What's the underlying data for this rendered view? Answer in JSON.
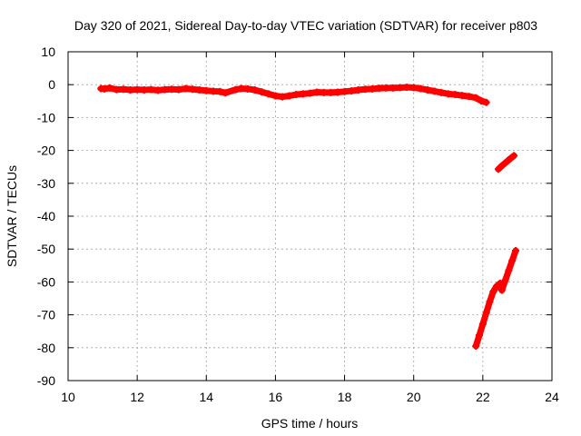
{
  "chart_data": {
    "type": "scatter",
    "title": "Day 320 of 2021, Sidereal Day-to-day VTEC variation (SDTVAR) for receiver p803",
    "xlabel": "GPS time / hours",
    "ylabel": "SDTVAR / TECUs",
    "xlim": [
      10,
      24
    ],
    "ylim": [
      -90,
      10
    ],
    "xticks": [
      10,
      12,
      14,
      16,
      18,
      20,
      22,
      24
    ],
    "yticks": [
      10,
      0,
      -10,
      -20,
      -30,
      -40,
      -50,
      -60,
      -70,
      -80,
      -90
    ],
    "grid": true,
    "marker_color": "#ff0000",
    "series": [
      {
        "points": [
          [
            10.95,
            -1.2
          ],
          [
            11.05,
            -1.3
          ],
          [
            11.2,
            -1.0
          ],
          [
            11.4,
            -1.5
          ],
          [
            11.6,
            -1.4
          ],
          [
            11.8,
            -1.6
          ],
          [
            12.0,
            -1.5
          ],
          [
            12.2,
            -1.6
          ],
          [
            12.4,
            -1.5
          ],
          [
            12.6,
            -1.7
          ],
          [
            12.8,
            -1.5
          ],
          [
            13.0,
            -1.4
          ],
          [
            13.2,
            -1.5
          ],
          [
            13.4,
            -1.2
          ],
          [
            13.6,
            -1.4
          ],
          [
            13.8,
            -1.6
          ],
          [
            14.0,
            -1.8
          ],
          [
            14.2,
            -2.0
          ],
          [
            14.4,
            -2.1
          ],
          [
            14.55,
            -2.5
          ],
          [
            14.85,
            -1.5
          ],
          [
            15.0,
            -1.2
          ],
          [
            15.2,
            -1.3
          ],
          [
            15.4,
            -1.6
          ],
          [
            15.6,
            -2.2
          ],
          [
            15.8,
            -2.8
          ],
          [
            16.0,
            -3.4
          ],
          [
            16.2,
            -3.7
          ],
          [
            16.4,
            -3.4
          ],
          [
            16.6,
            -3.0
          ],
          [
            16.8,
            -2.8
          ],
          [
            17.0,
            -2.6
          ],
          [
            17.2,
            -2.3
          ],
          [
            17.4,
            -2.4
          ],
          [
            17.6,
            -2.4
          ],
          [
            17.8,
            -2.3
          ],
          [
            18.0,
            -2.1
          ],
          [
            18.2,
            -1.9
          ],
          [
            18.4,
            -1.6
          ],
          [
            18.6,
            -1.4
          ],
          [
            18.8,
            -1.3
          ],
          [
            19.0,
            -1.1
          ],
          [
            19.2,
            -1.0
          ],
          [
            19.4,
            -1.0
          ],
          [
            19.6,
            -0.9
          ],
          [
            19.8,
            -0.8
          ],
          [
            20.0,
            -0.9
          ],
          [
            20.2,
            -1.2
          ],
          [
            20.4,
            -1.6
          ],
          [
            20.6,
            -2.0
          ],
          [
            20.8,
            -2.4
          ],
          [
            21.0,
            -2.8
          ],
          [
            21.2,
            -3.0
          ],
          [
            21.4,
            -3.3
          ],
          [
            21.6,
            -3.6
          ],
          [
            21.8,
            -4.0
          ],
          [
            21.95,
            -4.9
          ],
          [
            22.1,
            -5.4
          ],
          [
            22.45,
            -25.7
          ],
          [
            22.55,
            -24.7
          ],
          [
            22.65,
            -23.8
          ],
          [
            22.75,
            -22.9
          ],
          [
            22.9,
            -21.6
          ],
          [
            21.8,
            -79.5
          ],
          [
            21.9,
            -76.2
          ],
          [
            22.0,
            -72.8
          ],
          [
            22.1,
            -69.4
          ],
          [
            22.2,
            -66.0
          ],
          [
            22.3,
            -63.0
          ],
          [
            22.4,
            -61.3
          ],
          [
            22.5,
            -60.4
          ],
          [
            22.55,
            -62.5
          ],
          [
            22.65,
            -59.5
          ],
          [
            22.75,
            -56.5
          ],
          [
            22.85,
            -53.5
          ],
          [
            22.95,
            -50.5
          ]
        ]
      }
    ]
  }
}
